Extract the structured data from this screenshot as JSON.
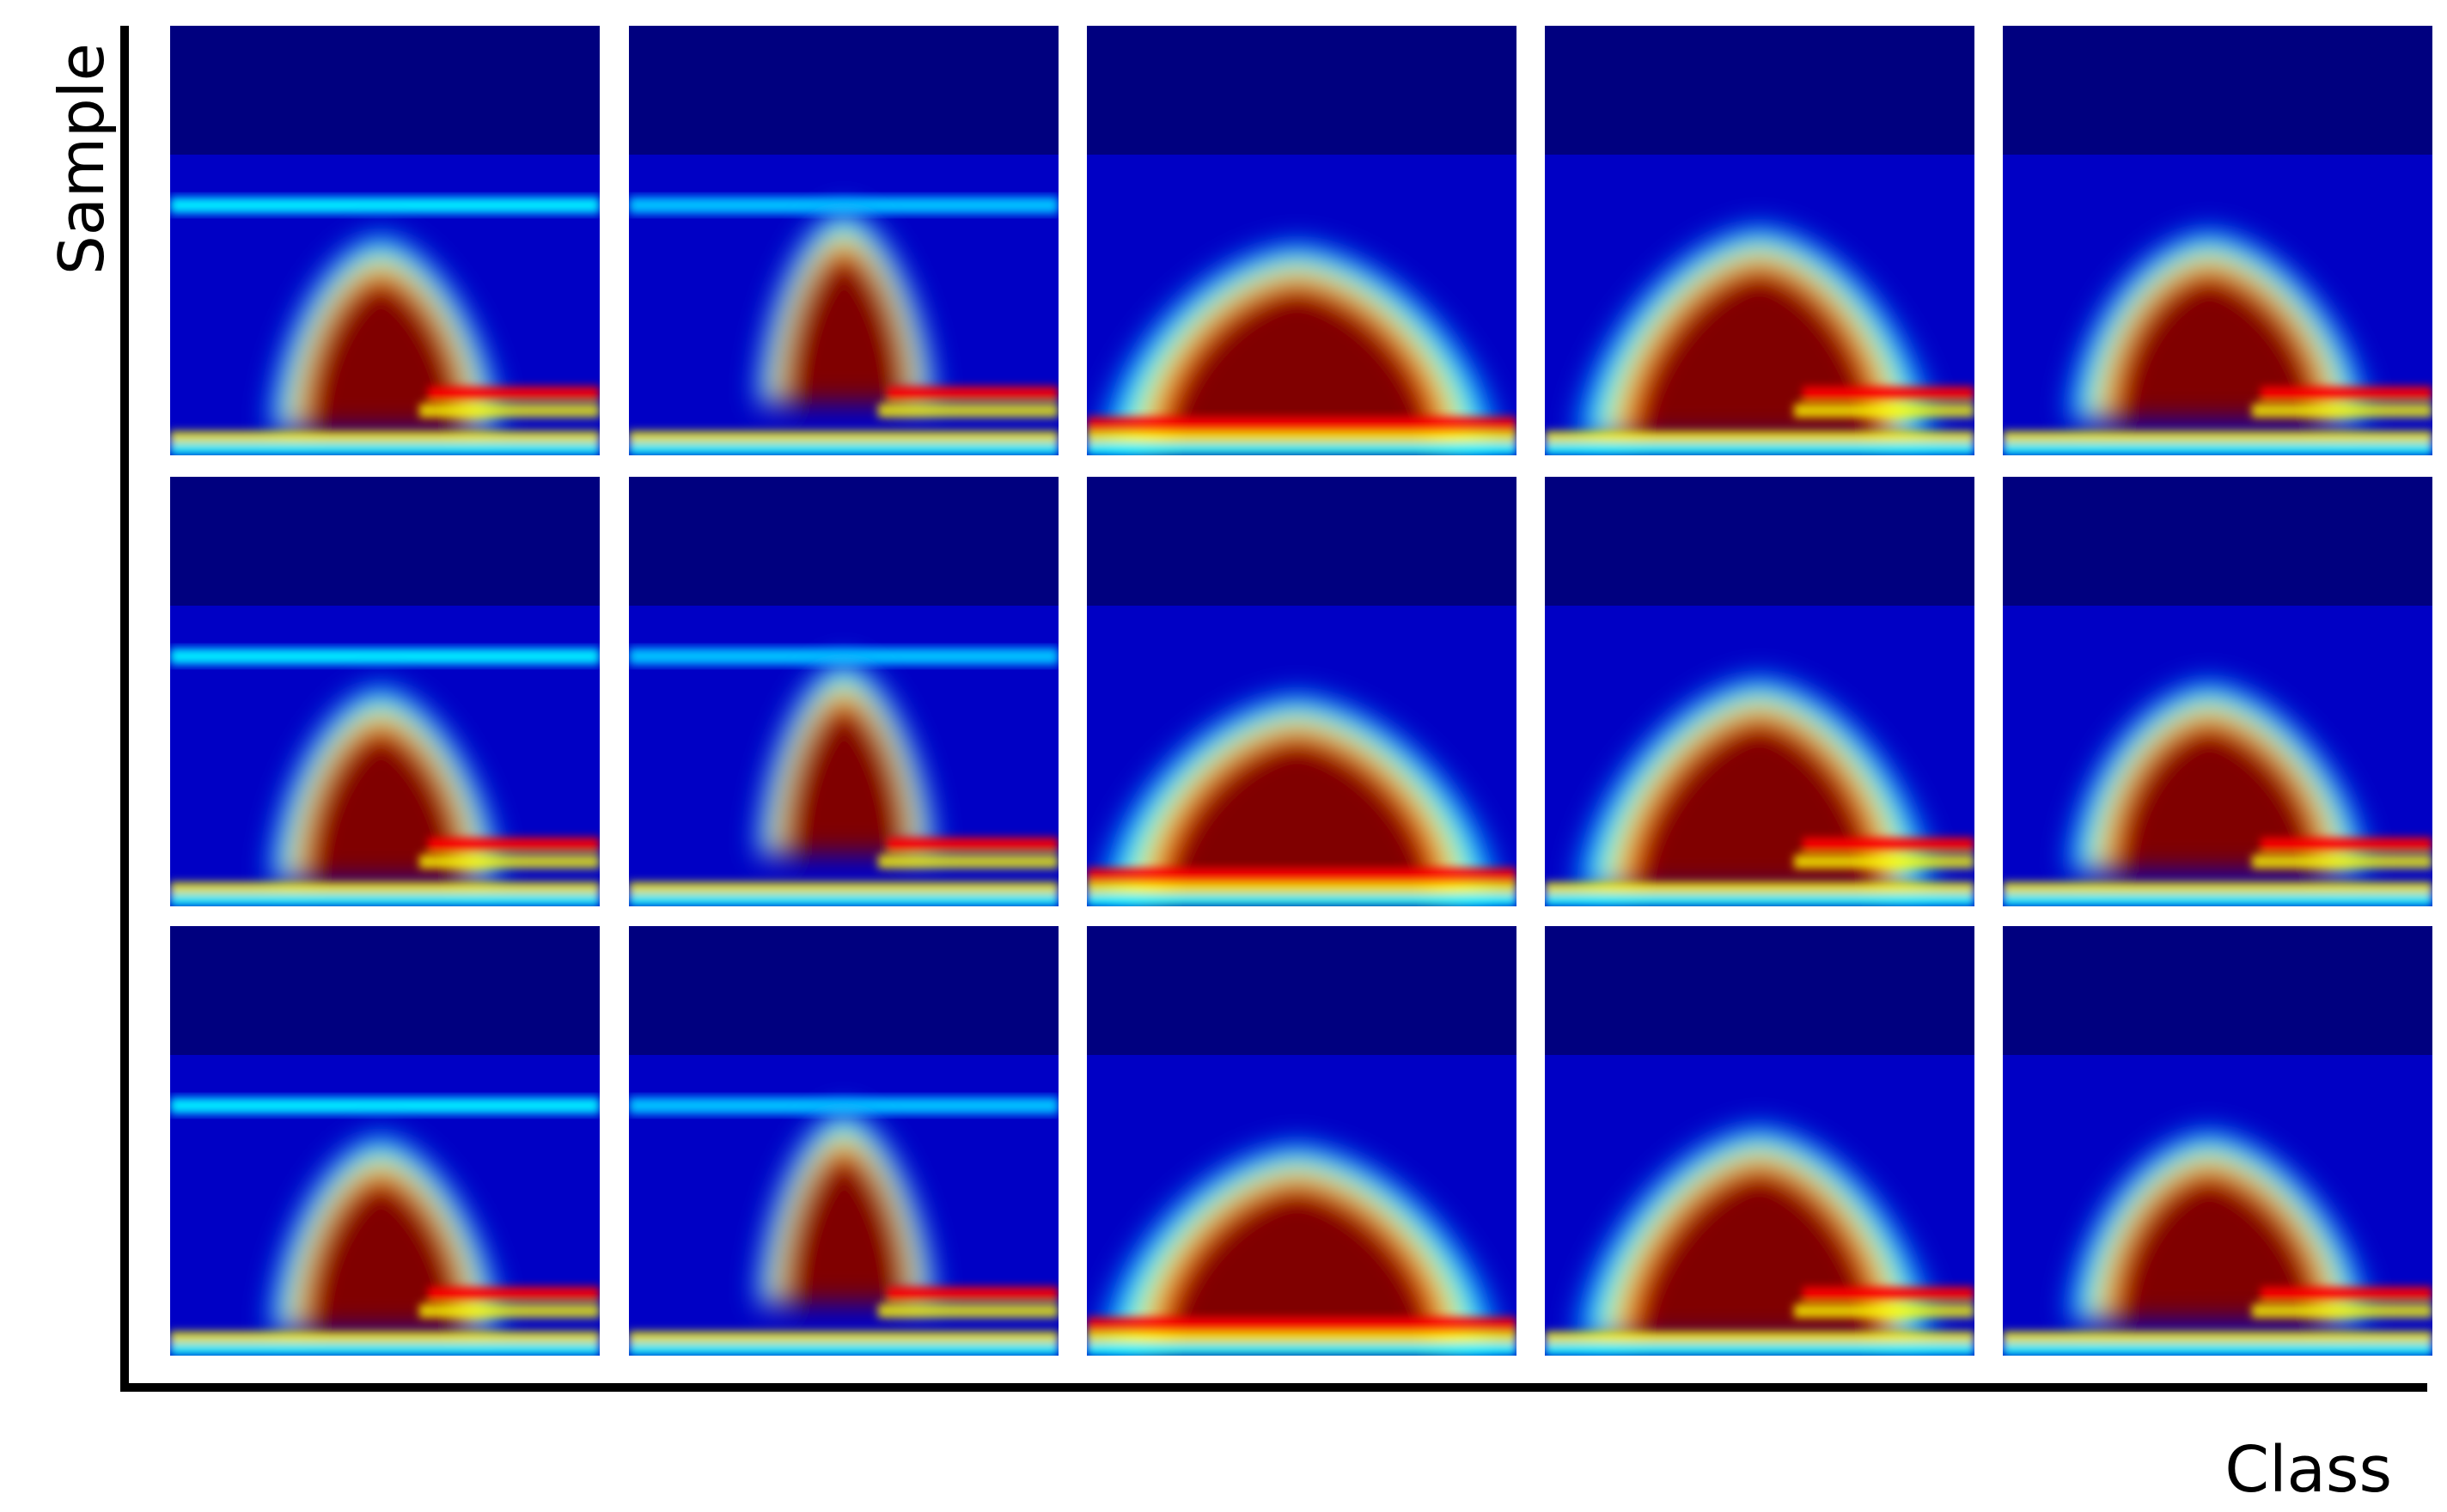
{
  "axes": {
    "y_label": "Sample",
    "x_label": "Class"
  },
  "colormap": [
    "#00007f",
    "#0000ff",
    "#0080ff",
    "#00ffff",
    "#80ff80",
    "#ffff00",
    "#ff8000",
    "#ff0000",
    "#800000"
  ],
  "grid": {
    "rows": 3,
    "columns": 5,
    "panels": [
      {
        "row": 1,
        "col": 1,
        "class_type": 1
      },
      {
        "row": 1,
        "col": 2,
        "class_type": 2
      },
      {
        "row": 1,
        "col": 3,
        "class_type": 3
      },
      {
        "row": 1,
        "col": 4,
        "class_type": 4
      },
      {
        "row": 1,
        "col": 5,
        "class_type": 5
      },
      {
        "row": 2,
        "col": 1,
        "class_type": 1
      },
      {
        "row": 2,
        "col": 2,
        "class_type": 2
      },
      {
        "row": 2,
        "col": 3,
        "class_type": 3
      },
      {
        "row": 2,
        "col": 4,
        "class_type": 4
      },
      {
        "row": 2,
        "col": 5,
        "class_type": 5
      },
      {
        "row": 3,
        "col": 1,
        "class_type": 1
      },
      {
        "row": 3,
        "col": 2,
        "class_type": 2
      },
      {
        "row": 3,
        "col": 3,
        "class_type": 3
      },
      {
        "row": 3,
        "col": 4,
        "class_type": 4
      },
      {
        "row": 3,
        "col": 5,
        "class_type": 5
      }
    ]
  }
}
